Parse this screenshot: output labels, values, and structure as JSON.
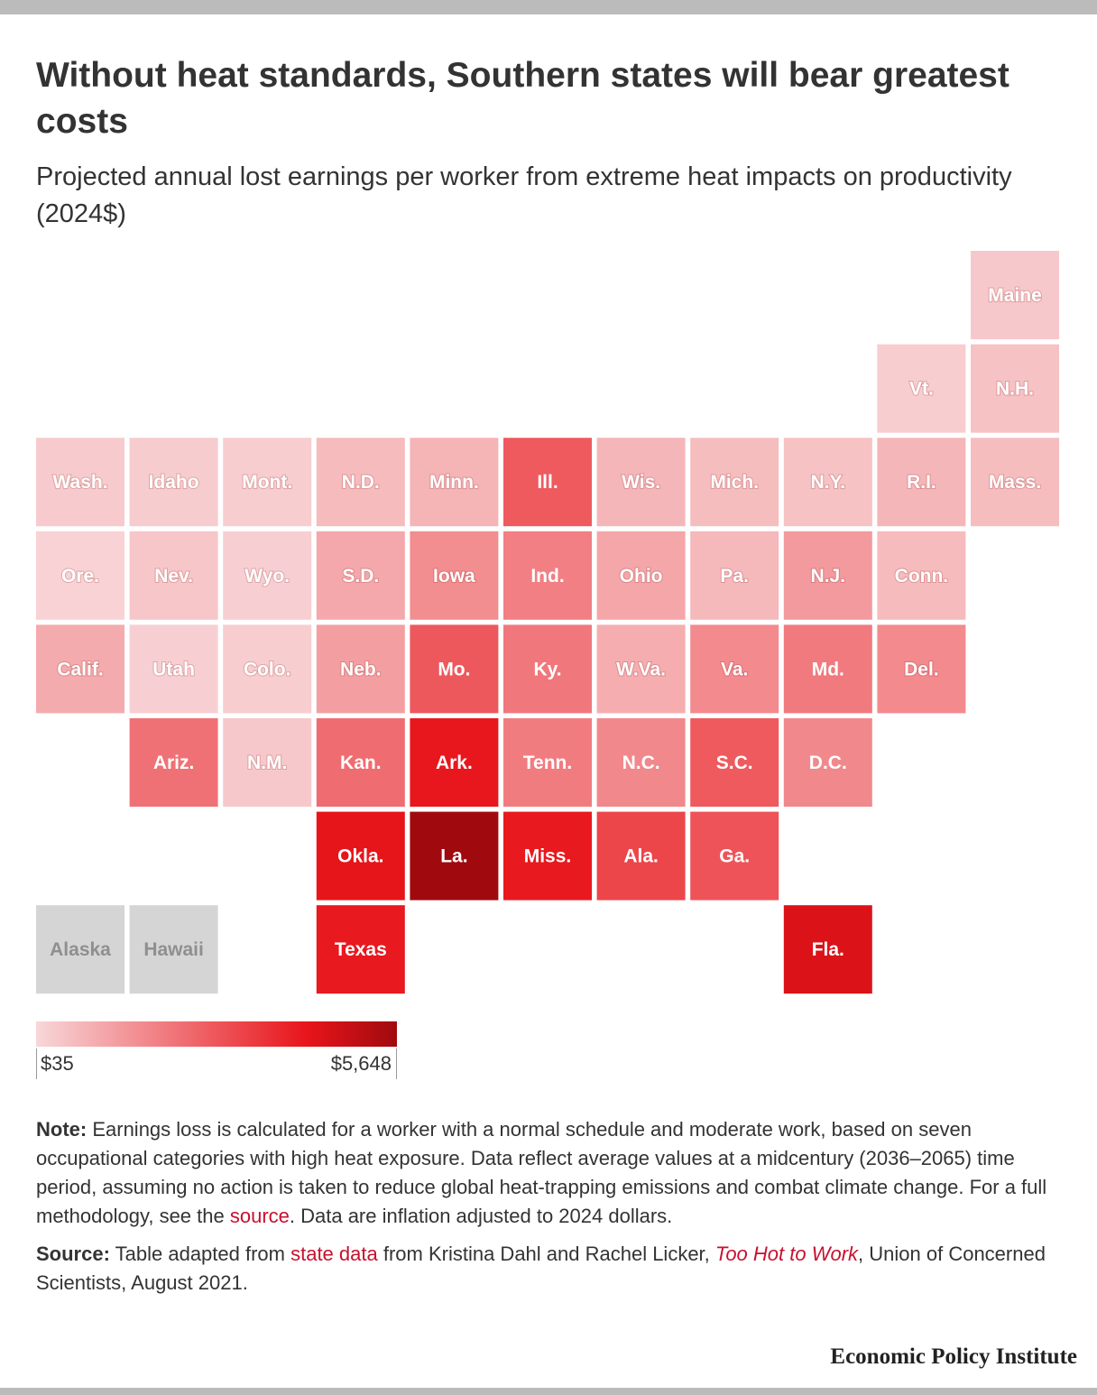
{
  "header": {
    "title": "Without heat standards, Southern states will bear greatest costs",
    "subtitle": "Projected annual lost earnings per worker from extreme heat impacts on productivity (2024$)"
  },
  "chart_data": {
    "type": "tile-map",
    "title": "Without heat standards, Southern states will bear greatest costs",
    "subtitle": "Projected annual lost earnings per worker from extreme heat impacts on productivity (2024$)",
    "value_unit": "2024 dollars per worker",
    "scale": {
      "min": 35,
      "max": 5648,
      "min_label": "$35",
      "max_label": "$5,648"
    },
    "colors": {
      "low": "#f8d7d9",
      "mid": "#e8151b",
      "high": "#a00a0e",
      "no_data": "#d5d5d5"
    },
    "states": [
      {
        "label": "Maine",
        "row": 0,
        "col": 10,
        "value": 350
      },
      {
        "label": "Vt.",
        "row": 1,
        "col": 9,
        "value": 250
      },
      {
        "label": "N.H.",
        "row": 1,
        "col": 10,
        "value": 500
      },
      {
        "label": "Wash.",
        "row": 2,
        "col": 0,
        "value": 300
      },
      {
        "label": "Idaho",
        "row": 2,
        "col": 1,
        "value": 280
      },
      {
        "label": "Mont.",
        "row": 2,
        "col": 2,
        "value": 250
      },
      {
        "label": "N.D.",
        "row": 2,
        "col": 3,
        "value": 650
      },
      {
        "label": "Minn.",
        "row": 2,
        "col": 4,
        "value": 800
      },
      {
        "label": "Ill.",
        "row": 2,
        "col": 5,
        "value": 2750
      },
      {
        "label": "Wis.",
        "row": 2,
        "col": 6,
        "value": 750
      },
      {
        "label": "Mich.",
        "row": 2,
        "col": 7,
        "value": 600
      },
      {
        "label": "N.Y.",
        "row": 2,
        "col": 8,
        "value": 500
      },
      {
        "label": "R.I.",
        "row": 2,
        "col": 9,
        "value": 750
      },
      {
        "label": "Mass.",
        "row": 2,
        "col": 10,
        "value": 600
      },
      {
        "label": "Ore.",
        "row": 3,
        "col": 0,
        "value": 150
      },
      {
        "label": "Nev.",
        "row": 3,
        "col": 1,
        "value": 400
      },
      {
        "label": "Wyo.",
        "row": 3,
        "col": 2,
        "value": 200
      },
      {
        "label": "S.D.",
        "row": 3,
        "col": 3,
        "value": 1050
      },
      {
        "label": "Iowa",
        "row": 3,
        "col": 4,
        "value": 1650
      },
      {
        "label": "Ind.",
        "row": 3,
        "col": 5,
        "value": 1950
      },
      {
        "label": "Ohio",
        "row": 3,
        "col": 6,
        "value": 1100
      },
      {
        "label": "Pa.",
        "row": 3,
        "col": 7,
        "value": 700
      },
      {
        "label": "N.J.",
        "row": 3,
        "col": 8,
        "value": 1350
      },
      {
        "label": "Conn.",
        "row": 3,
        "col": 9,
        "value": 650
      },
      {
        "label": "Calif.",
        "row": 4,
        "col": 0,
        "value": 1000
      },
      {
        "label": "Utah",
        "row": 4,
        "col": 1,
        "value": 200
      },
      {
        "label": "Colo.",
        "row": 4,
        "col": 2,
        "value": 250
      },
      {
        "label": "Neb.",
        "row": 4,
        "col": 3,
        "value": 1250
      },
      {
        "label": "Mo.",
        "row": 4,
        "col": 4,
        "value": 2800
      },
      {
        "label": "Ky.",
        "row": 4,
        "col": 5,
        "value": 2100
      },
      {
        "label": "W.Va.",
        "row": 4,
        "col": 6,
        "value": 950
      },
      {
        "label": "Va.",
        "row": 4,
        "col": 7,
        "value": 1700
      },
      {
        "label": "Md.",
        "row": 4,
        "col": 8,
        "value": 2050
      },
      {
        "label": "Del.",
        "row": 4,
        "col": 9,
        "value": 1700
      },
      {
        "label": "Ariz.",
        "row": 5,
        "col": 1,
        "value": 2250
      },
      {
        "label": "N.M.",
        "row": 5,
        "col": 2,
        "value": 350
      },
      {
        "label": "Kan.",
        "row": 5,
        "col": 3,
        "value": 2350
      },
      {
        "label": "Ark.",
        "row": 5,
        "col": 4,
        "value": 4200
      },
      {
        "label": "Tenn.",
        "row": 5,
        "col": 5,
        "value": 2000
      },
      {
        "label": "N.C.",
        "row": 5,
        "col": 6,
        "value": 1750
      },
      {
        "label": "S.C.",
        "row": 5,
        "col": 7,
        "value": 2750
      },
      {
        "label": "D.C.",
        "row": 5,
        "col": 8,
        "value": 1750
      },
      {
        "label": "Okla.",
        "row": 6,
        "col": 3,
        "value": 4300
      },
      {
        "label": "La.",
        "row": 6,
        "col": 4,
        "value": 5648
      },
      {
        "label": "Miss.",
        "row": 6,
        "col": 5,
        "value": 4150
      },
      {
        "label": "Ala.",
        "row": 6,
        "col": 6,
        "value": 3200
      },
      {
        "label": "Ga.",
        "row": 6,
        "col": 7,
        "value": 2900
      },
      {
        "label": "Alaska",
        "row": 7,
        "col": 0,
        "value": null
      },
      {
        "label": "Hawaii",
        "row": 7,
        "col": 1,
        "value": null
      },
      {
        "label": "Texas",
        "row": 7,
        "col": 3,
        "value": 4150
      },
      {
        "label": "Fla.",
        "row": 7,
        "col": 8,
        "value": 4500
      }
    ]
  },
  "notes": {
    "note_label": "Note:",
    "note_text_1": " Earnings loss is calculated for a worker with a normal schedule and moderate work, based on seven occupational categories with high heat exposure. Data reflect average values at a midcentury (2036–2065) time period, assuming no action is taken to reduce global heat-trapping emissions and combat climate change. For a full methodology, see the ",
    "note_link": "source",
    "note_text_2": ". Data are inflation adjusted to 2024 dollars.",
    "source_label": "Source:",
    "source_text_1": " Table adapted from ",
    "source_link": "state data",
    "source_text_2": " from Kristina Dahl and Rachel Licker, ",
    "source_title": "Too Hot to Work",
    "source_text_3": ", Union of Concerned Scientists, August 2021."
  },
  "branding": {
    "name": "Economic Policy Institute"
  }
}
